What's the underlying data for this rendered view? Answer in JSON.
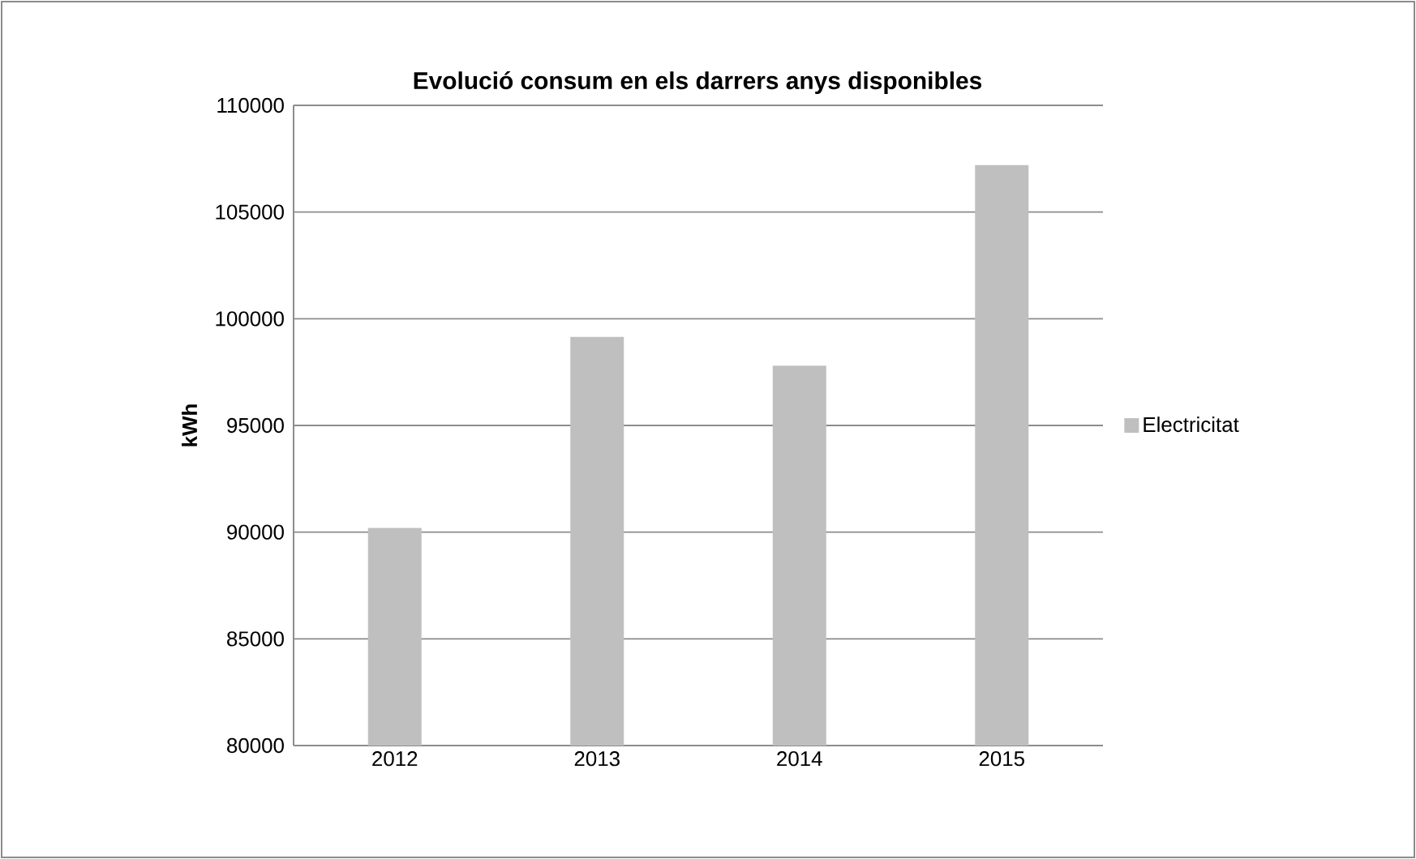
{
  "chart_data": {
    "type": "bar",
    "title": "Evolució consum en els darrers anys disponibles",
    "ylabel": "kWh",
    "categories": [
      "2012",
      "2013",
      "2014",
      "2015"
    ],
    "series": [
      {
        "name": "Electricitat",
        "color": "#bfbfbf",
        "values": [
          90200,
          99150,
          97800,
          107200
        ]
      }
    ],
    "ylim": [
      80000,
      110000
    ],
    "yticks": [
      80000,
      85000,
      90000,
      95000,
      100000,
      105000,
      110000
    ],
    "grid": "y",
    "legend": "right"
  }
}
